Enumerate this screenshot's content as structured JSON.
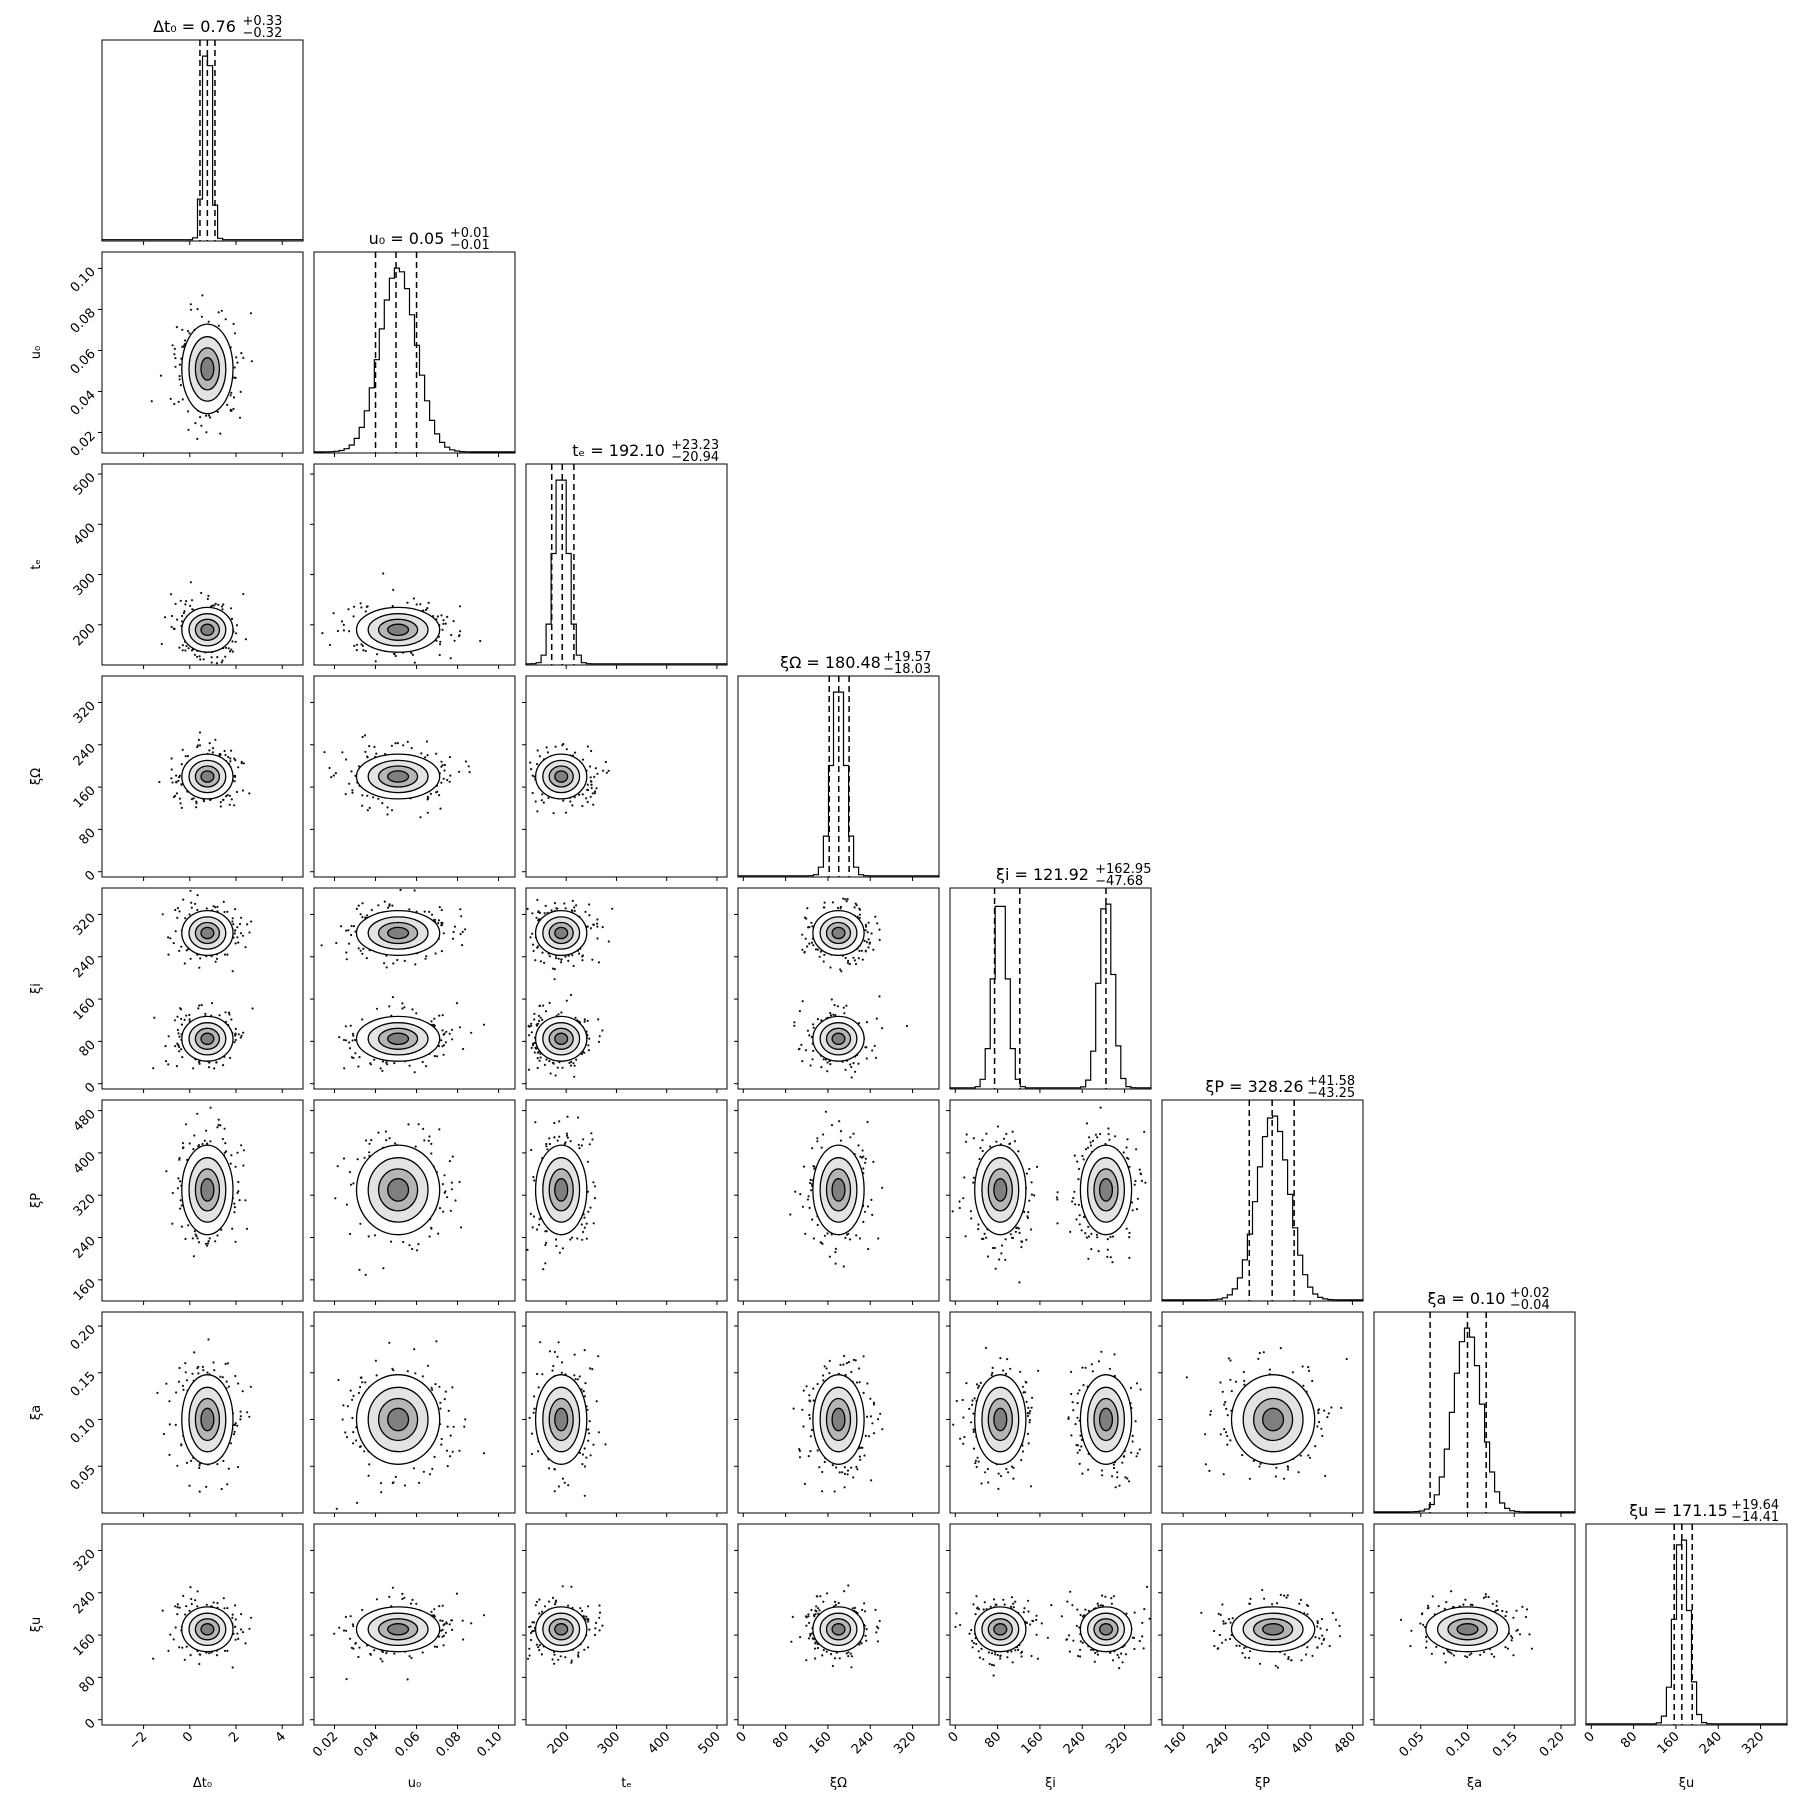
{
  "chart_data": {
    "type": "corner",
    "parameters": [
      {
        "label": "Δt₀",
        "title_main": "Δt₀ = 0.76",
        "title_sup": "+0.33",
        "title_sub": "−0.32",
        "range": [
          -3.8,
          4.9
        ],
        "ticks": [
          -2,
          0,
          2,
          4
        ],
        "tick_labels": [
          "−2",
          "0",
          "2",
          "4"
        ],
        "quantiles": [
          0.44,
          0.76,
          1.09
        ],
        "mode": 0.76,
        "modes": [
          0.76
        ]
      },
      {
        "label": "u₀",
        "title_main": "u₀ = 0.05",
        "title_sup": "+0.01",
        "title_sub": "−0.01",
        "range": [
          0.01,
          0.108
        ],
        "ticks": [
          0.02,
          0.04,
          0.06,
          0.08,
          0.1
        ],
        "tick_labels": [
          "0.02",
          "0.04",
          "0.06",
          "0.08",
          "0.10"
        ],
        "quantiles": [
          0.04,
          0.05,
          0.06
        ],
        "mode": 0.051,
        "modes": [
          0.051
        ]
      },
      {
        "label": "tₑ",
        "title_main": "tₑ = 192.10",
        "title_sup": "+23.23",
        "title_sub": "−20.94",
        "range": [
          120,
          520
        ],
        "ticks": [
          200,
          300,
          400,
          500
        ],
        "tick_labels": [
          "200",
          "300",
          "400",
          "500"
        ],
        "quantiles": [
          171.16,
          192.1,
          215.33
        ],
        "mode": 190,
        "modes": [
          190
        ]
      },
      {
        "label": "ξΩ",
        "title_main": "ξΩ = 180.48",
        "title_sup": "+19.57",
        "title_sub": "−18.03",
        "range": [
          -10,
          370
        ],
        "ticks": [
          0,
          80,
          160,
          240,
          320
        ],
        "tick_labels": [
          "0",
          "80",
          "160",
          "240",
          "320"
        ],
        "quantiles": [
          162.45,
          180.48,
          200.05
        ],
        "mode": 180,
        "modes": [
          180
        ]
      },
      {
        "label": "ξi",
        "title_main": "ξi = 121.92",
        "title_sup": "+162.95",
        "title_sub": "−47.68",
        "range": [
          -10,
          370
        ],
        "ticks": [
          0,
          80,
          160,
          240,
          320
        ],
        "tick_labels": [
          "0",
          "80",
          "160",
          "240",
          "320"
        ],
        "quantiles": [
          74.24,
          121.92,
          284.87
        ],
        "mode": 85,
        "modes": [
          85,
          285
        ]
      },
      {
        "label": "ξP",
        "title_main": "ξP = 328.26",
        "title_sup": "+41.58",
        "title_sub": "−43.25",
        "range": [
          120,
          500
        ],
        "ticks": [
          160,
          240,
          320,
          400,
          480
        ],
        "tick_labels": [
          "160",
          "240",
          "320",
          "400",
          "480"
        ],
        "quantiles": [
          285.01,
          328.26,
          369.84
        ],
        "mode": 330,
        "modes": [
          330
        ]
      },
      {
        "label": "ξa",
        "title_main": "ξa = 0.10",
        "title_sup": "+0.02",
        "title_sub": "−0.04",
        "range": [
          0,
          0.215
        ],
        "ticks": [
          0.05,
          0.1,
          0.15,
          0.2
        ],
        "tick_labels": [
          "0.05",
          "0.10",
          "0.15",
          "0.20"
        ],
        "quantiles": [
          0.06,
          0.1,
          0.12
        ],
        "mode": 0.1,
        "modes": [
          0.1
        ]
      },
      {
        "label": "ξu",
        "title_main": "ξu = 171.15",
        "title_sup": "+19.64",
        "title_sub": "−14.41",
        "range": [
          -10,
          370
        ],
        "ticks": [
          0,
          80,
          160,
          240,
          320
        ],
        "tick_labels": [
          "0",
          "80",
          "160",
          "240",
          "320"
        ],
        "quantiles": [
          156.74,
          171.15,
          190.79
        ],
        "mode": 171,
        "modes": [
          171
        ]
      }
    ],
    "grid": false,
    "legend": "none"
  }
}
